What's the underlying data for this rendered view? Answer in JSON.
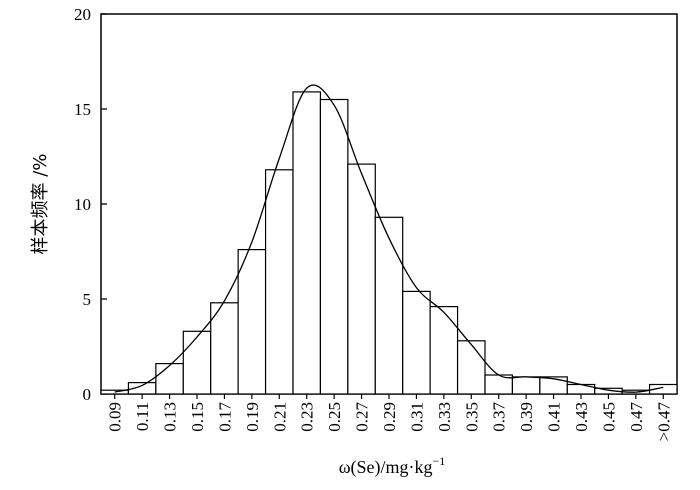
{
  "chart_data": {
    "type": "bar",
    "categories": [
      "0.09",
      "0.11",
      "0.13",
      "0.15",
      "0.17",
      "0.19",
      "0.21",
      "0.23",
      "0.25",
      "0.27",
      "0.29",
      "0.31",
      "0.33",
      "0.35",
      "0.37",
      "0.39",
      "0.41",
      "0.43",
      "0.45",
      "0.47",
      ">0.47"
    ],
    "values": [
      0.2,
      0.6,
      1.6,
      3.3,
      4.8,
      7.6,
      11.8,
      15.9,
      15.5,
      12.1,
      9.3,
      5.4,
      4.6,
      2.8,
      1.0,
      0.9,
      0.9,
      0.5,
      0.3,
      0.2,
      0.5
    ],
    "curve": [
      0.1,
      0.45,
      1.5,
      3.0,
      4.9,
      8.0,
      12.4,
      16.1,
      15.2,
      11.6,
      8.2,
      5.6,
      4.3,
      2.6,
      1.0,
      0.9,
      0.8,
      0.5,
      0.2,
      0.1,
      0.35
    ],
    "ylabel": "样本频率 /%",
    "xlabel_main": "ω(Se)/mg·kg",
    "xlabel_sup": "−1",
    "ylim": [
      0,
      20
    ],
    "yticks": [
      0,
      5,
      10,
      15,
      20
    ],
    "grid": false
  }
}
